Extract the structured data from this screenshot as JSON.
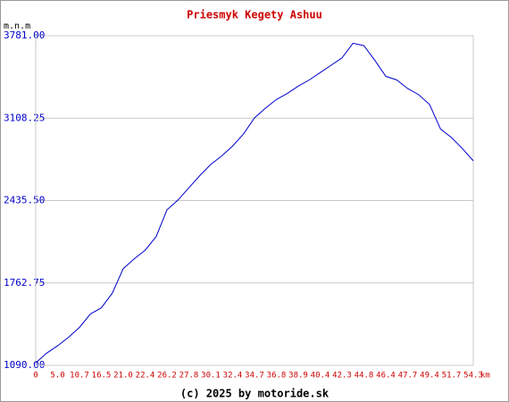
{
  "chart_data": {
    "type": "line",
    "title": "Priesmyk Kegety Ashuu",
    "y_label": "m.n.m",
    "x_unit": "km",
    "footer": "(c) 2025 by motoride.sk",
    "categories": [
      "0",
      null,
      "5.0",
      null,
      "10.7",
      null,
      "16.5",
      null,
      "21.0",
      null,
      "22.4",
      null,
      "26.2",
      null,
      "27.8",
      null,
      "30.1",
      null,
      "32.4",
      null,
      "34.7",
      null,
      "36.8",
      null,
      "38.9",
      null,
      "40.4",
      null,
      "42.3",
      null,
      "44.8",
      null,
      "46.4",
      null,
      "47.7",
      null,
      "49.4",
      null,
      "51.7",
      null,
      "54.3"
    ],
    "series": [
      {
        "name": "elevation",
        "color": "#0000cc",
        "values": [
          1110,
          1190,
          1250,
          1320,
          1400,
          1510,
          1560,
          1680,
          1880,
          1960,
          2030,
          2140,
          2360,
          2440,
          2540,
          2640,
          2730,
          2800,
          2880,
          2980,
          3110,
          3190,
          3260,
          3310,
          3370,
          3420,
          3480,
          3540,
          3600,
          3720,
          3700,
          3580,
          3450,
          3420,
          3350,
          3300,
          3220,
          3020,
          2950,
          2860,
          2760
        ]
      }
    ],
    "ylim": [
      1090,
      3781
    ],
    "yticks": [
      {
        "value": 1090,
        "label": "1090.00"
      },
      {
        "value": 1762.75,
        "label": "1762.75"
      },
      {
        "value": 2435.5,
        "label": "2435.50"
      },
      {
        "value": 3108.25,
        "label": "3108.25"
      },
      {
        "value": 3781,
        "label": "3781.00"
      }
    ],
    "grid": true
  }
}
